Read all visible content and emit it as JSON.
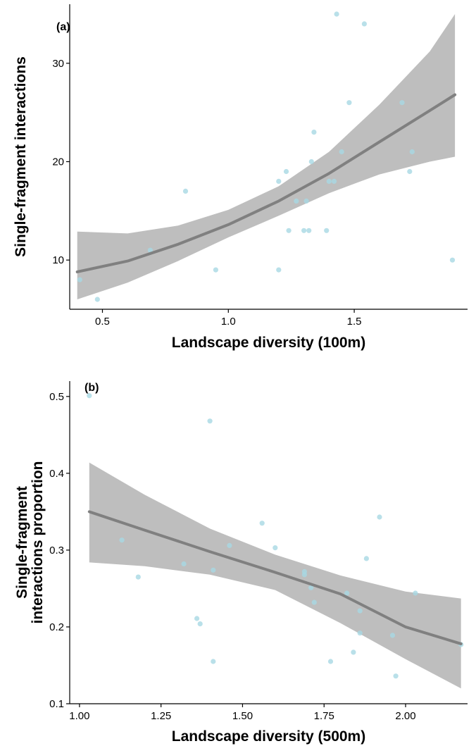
{
  "chart_data": [
    {
      "type": "scatter",
      "panel_label": "(a)",
      "xlabel": "Landscape diversity (100m)",
      "ylabel": "Single-fragment interactions",
      "ylabel_lines": [
        "Single-fragment interactions"
      ],
      "xlim": [
        0.37,
        1.95
      ],
      "ylim": [
        5,
        36
      ],
      "x_ticks": [
        0.5,
        1.0,
        1.5
      ],
      "x_tick_labels": [
        "0.5",
        "1.0",
        "1.5"
      ],
      "y_ticks": [
        10,
        20,
        30
      ],
      "y_tick_labels": [
        "10",
        "20",
        "30"
      ],
      "grid": false,
      "point_color": "#a8d8e3",
      "fit_color": "#808080",
      "band_color": "#bebebe",
      "points": [
        {
          "x": 0.41,
          "y": 8
        },
        {
          "x": 0.48,
          "y": 6
        },
        {
          "x": 0.69,
          "y": 11
        },
        {
          "x": 0.83,
          "y": 17
        },
        {
          "x": 0.95,
          "y": 9
        },
        {
          "x": 1.2,
          "y": 18
        },
        {
          "x": 1.2,
          "y": 9
        },
        {
          "x": 1.23,
          "y": 19
        },
        {
          "x": 1.24,
          "y": 13
        },
        {
          "x": 1.27,
          "y": 16
        },
        {
          "x": 1.3,
          "y": 13
        },
        {
          "x": 1.31,
          "y": 16
        },
        {
          "x": 1.32,
          "y": 13
        },
        {
          "x": 1.33,
          "y": 20
        },
        {
          "x": 1.34,
          "y": 23
        },
        {
          "x": 1.39,
          "y": 13
        },
        {
          "x": 1.4,
          "y": 18
        },
        {
          "x": 1.42,
          "y": 18
        },
        {
          "x": 1.43,
          "y": 35
        },
        {
          "x": 1.45,
          "y": 21
        },
        {
          "x": 1.48,
          "y": 26
        },
        {
          "x": 1.54,
          "y": 34
        },
        {
          "x": 1.69,
          "y": 26
        },
        {
          "x": 1.72,
          "y": 19
        },
        {
          "x": 1.73,
          "y": 21
        },
        {
          "x": 1.89,
          "y": 10
        }
      ],
      "fit": {
        "x": [
          0.4,
          0.6,
          0.8,
          1.0,
          1.2,
          1.4,
          1.6,
          1.8,
          1.9
        ],
        "y": [
          8.8,
          9.9,
          11.6,
          13.6,
          16.0,
          18.8,
          22.0,
          25.2,
          26.8
        ],
        "lower": [
          6.0,
          7.7,
          9.9,
          12.3,
          14.5,
          16.8,
          18.7,
          20.0,
          20.5
        ],
        "upper": [
          12.9,
          12.7,
          13.5,
          15.1,
          17.5,
          21.0,
          25.8,
          31.2,
          35.0
        ]
      }
    },
    {
      "type": "scatter",
      "panel_label": "(b)",
      "xlabel": "Landscape diversity (500m)",
      "ylabel": "Single-fragment interactions proportion",
      "ylabel_lines": [
        "Single-fragment",
        "interactions proportion"
      ],
      "xlim": [
        0.97,
        2.19
      ],
      "ylim": [
        0.1,
        0.52
      ],
      "x_ticks": [
        1.0,
        1.25,
        1.5,
        1.75,
        2.0
      ],
      "x_tick_labels": [
        "1.00",
        "1.25",
        "1.50",
        "1.75",
        "2.00"
      ],
      "y_ticks": [
        0.1,
        0.2,
        0.3,
        0.4,
        0.5
      ],
      "y_tick_labels": [
        "0.1",
        "0.2",
        "0.3",
        "0.4",
        "0.5"
      ],
      "grid": false,
      "point_color": "#a8d8e3",
      "fit_color": "#808080",
      "band_color": "#bebebe",
      "points": [
        {
          "x": 1.03,
          "y": 0.501
        },
        {
          "x": 1.13,
          "y": 0.313
        },
        {
          "x": 1.18,
          "y": 0.265
        },
        {
          "x": 1.32,
          "y": 0.282
        },
        {
          "x": 1.36,
          "y": 0.211
        },
        {
          "x": 1.37,
          "y": 0.204
        },
        {
          "x": 1.4,
          "y": 0.468
        },
        {
          "x": 1.41,
          "y": 0.274
        },
        {
          "x": 1.41,
          "y": 0.155
        },
        {
          "x": 1.46,
          "y": 0.306
        },
        {
          "x": 1.56,
          "y": 0.335
        },
        {
          "x": 1.6,
          "y": 0.303
        },
        {
          "x": 1.69,
          "y": 0.272
        },
        {
          "x": 1.69,
          "y": 0.268
        },
        {
          "x": 1.71,
          "y": 0.251
        },
        {
          "x": 1.72,
          "y": 0.232
        },
        {
          "x": 1.77,
          "y": 0.155
        },
        {
          "x": 1.82,
          "y": 0.244
        },
        {
          "x": 1.84,
          "y": 0.167
        },
        {
          "x": 1.86,
          "y": 0.221
        },
        {
          "x": 1.86,
          "y": 0.192
        },
        {
          "x": 1.88,
          "y": 0.289
        },
        {
          "x": 1.92,
          "y": 0.343
        },
        {
          "x": 1.96,
          "y": 0.189
        },
        {
          "x": 1.97,
          "y": 0.136
        },
        {
          "x": 2.03,
          "y": 0.244
        },
        {
          "x": 2.17,
          "y": 0.177
        }
      ],
      "fit": {
        "x": [
          1.03,
          1.2,
          1.4,
          1.6,
          1.8,
          2.0,
          2.17
        ],
        "y": [
          0.35,
          0.326,
          0.298,
          0.271,
          0.243,
          0.2,
          0.178
        ],
        "lower": [
          0.284,
          0.279,
          0.268,
          0.248,
          0.205,
          0.158,
          0.12
        ],
        "upper": [
          0.414,
          0.372,
          0.328,
          0.294,
          0.267,
          0.246,
          0.237
        ]
      }
    }
  ]
}
